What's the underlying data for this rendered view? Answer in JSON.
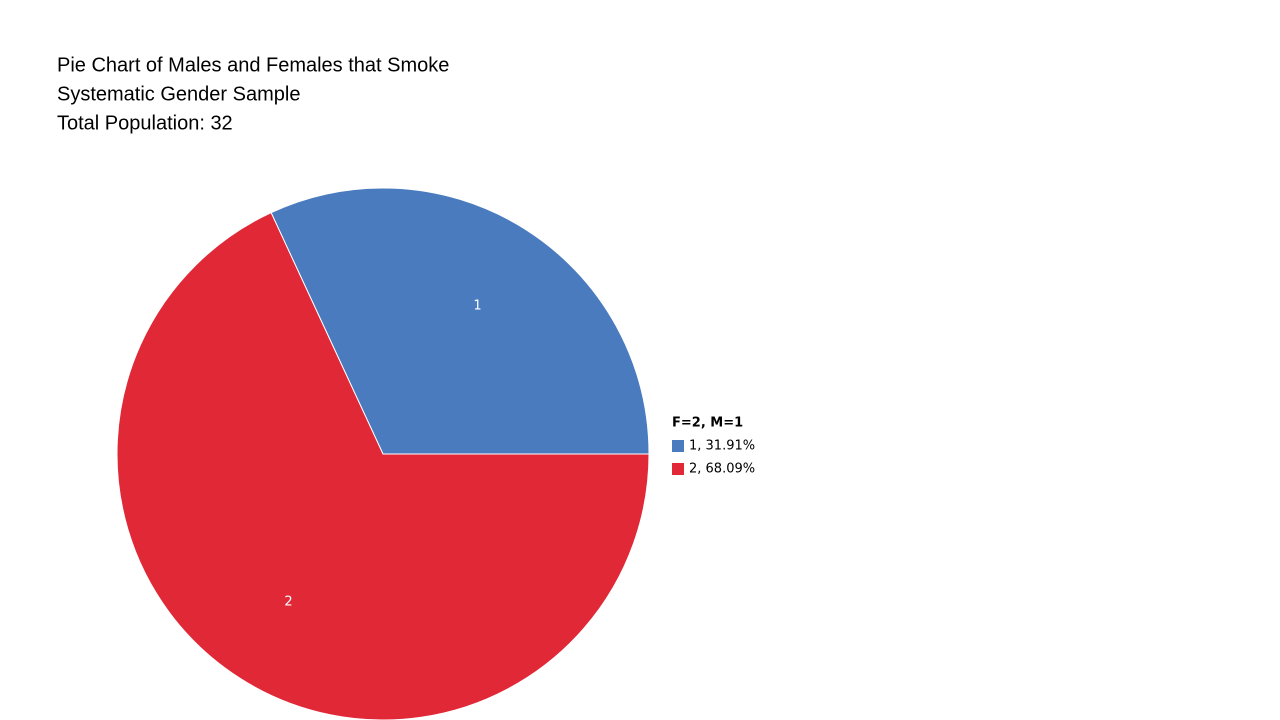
{
  "chart_data": {
    "type": "pie",
    "title": "Pie Chart of Males and Females that Smoke",
    "subtitle": "Systematic Gender Sample",
    "annotations": [
      "Total Population: 32"
    ],
    "legend_title": "F=2, M=1",
    "categories": [
      "1",
      "2"
    ],
    "values": [
      31.91,
      68.09
    ],
    "value_labels": [
      "1, 31.91%",
      "2, 68.09%"
    ],
    "colors": [
      "#4a7bbf",
      "#e02837"
    ],
    "legend_position": "right"
  }
}
